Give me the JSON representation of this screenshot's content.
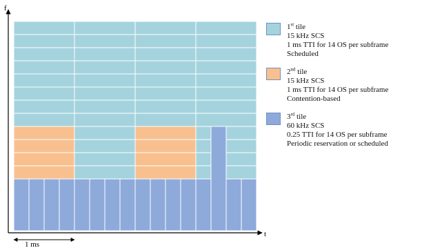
{
  "axes": {
    "y_label": "f",
    "x_label": "t",
    "scale_label": "1 ms"
  },
  "colors": {
    "scheduled": "#a4d3de",
    "contention": "#f9c08f",
    "periodic": "#8eaadb",
    "border": "#ffffff",
    "outline": "#6e8fc4"
  },
  "legend": [
    {
      "id": "tile-1",
      "color": "#a4d3de",
      "lines": [
        {
          "text": "1",
          "sup": "st",
          "after": " tile"
        },
        {
          "text": "15 kHz SCS"
        },
        {
          "text": "1 ms TTI for 14 OS per subframe"
        },
        {
          "text": "Scheduled"
        }
      ]
    },
    {
      "id": "tile-2",
      "color": "#f9c08f",
      "lines": [
        {
          "text": "2",
          "sup": "nd",
          "after": " tile"
        },
        {
          "text": "15 kHz SCS"
        },
        {
          "text": "1 ms TTI for 14 OS per subframe"
        },
        {
          "text": "Contention-based"
        }
      ]
    },
    {
      "id": "tile-3",
      "color": "#8eaadb",
      "lines": [
        {
          "text": "3",
          "sup": "rd",
          "after": " tile"
        },
        {
          "text": "60 kHz SCS"
        },
        {
          "text": "0.25 TTI for 14 OS per subframe"
        },
        {
          "text": "Periodic reservation or scheduled"
        }
      ]
    }
  ]
}
